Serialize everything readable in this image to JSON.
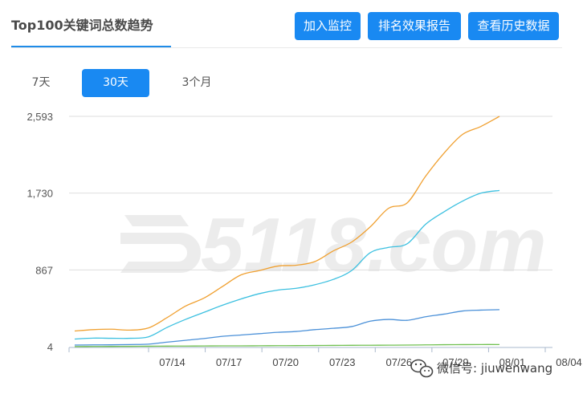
{
  "header": {
    "title": "Top100关键词总数趋势",
    "buttons": {
      "monitor": "加入监控",
      "report": "排名效果报告",
      "history": "查看历史数据"
    }
  },
  "periods": {
    "options": [
      "7天",
      "30天",
      "3个月"
    ],
    "selected": "30天"
  },
  "colors": {
    "accent": "#1989f2",
    "series_orange": "#f0a030",
    "series_cyan": "#3cc0e0",
    "series_blue": "#4a90d8",
    "series_green": "#70c050"
  },
  "watermarks": {
    "logo": "5118.com",
    "wechat": "微信号: jiuwenwang"
  },
  "chart_data": {
    "type": "line",
    "y_ticks": [
      "2,593",
      "1,730",
      "867",
      "4"
    ],
    "ylim": [
      4,
      2593
    ],
    "x_tick_labels": [
      "07/14",
      "07/17",
      "07/20",
      "07/23",
      "07/26",
      "07/29",
      "08/01",
      "08/04"
    ],
    "x_domain": [
      0,
      23
    ],
    "grid": true,
    "series": [
      {
        "color": "#f0a030",
        "x": [
          0,
          1,
          2,
          3,
          4,
          5,
          6,
          7,
          8,
          9,
          10,
          11,
          12,
          13,
          14,
          15,
          16,
          17,
          18,
          19,
          20,
          21,
          22,
          23
        ],
        "values": [
          180,
          195,
          200,
          190,
          215,
          330,
          460,
          550,
          680,
          810,
          860,
          910,
          920,
          960,
          1080,
          1180,
          1350,
          1560,
          1620,
          1920,
          2180,
          2390,
          2480,
          2593
        ]
      },
      {
        "color": "#3cc0e0",
        "x": [
          0,
          1,
          2,
          3,
          4,
          5,
          6,
          7,
          8,
          9,
          10,
          11,
          12,
          13,
          14,
          15,
          16,
          17,
          18,
          19,
          20,
          21,
          22,
          23
        ],
        "values": [
          90,
          100,
          98,
          98,
          115,
          220,
          310,
          390,
          470,
          540,
          600,
          640,
          660,
          700,
          760,
          860,
          1060,
          1120,
          1160,
          1380,
          1520,
          1640,
          1730,
          1760
        ]
      },
      {
        "color": "#4a90d8",
        "x": [
          0,
          1,
          2,
          3,
          4,
          5,
          6,
          7,
          8,
          9,
          10,
          11,
          12,
          13,
          14,
          15,
          16,
          17,
          18,
          19,
          20,
          21,
          22,
          23
        ],
        "values": [
          22,
          24,
          25,
          28,
          32,
          55,
          75,
          95,
          120,
          135,
          150,
          165,
          175,
          195,
          210,
          230,
          290,
          310,
          300,
          340,
          370,
          405,
          415,
          420
        ]
      },
      {
        "color": "#70c050",
        "x": [
          0,
          1,
          2,
          3,
          4,
          5,
          6,
          7,
          8,
          9,
          10,
          11,
          12,
          13,
          14,
          15,
          16,
          17,
          18,
          19,
          20,
          21,
          22,
          23
        ],
        "values": [
          5,
          6,
          7,
          8,
          9,
          10,
          11,
          12,
          13,
          13,
          14,
          15,
          16,
          17,
          18,
          19,
          20,
          21,
          22,
          24,
          26,
          27,
          28,
          28
        ]
      }
    ]
  }
}
